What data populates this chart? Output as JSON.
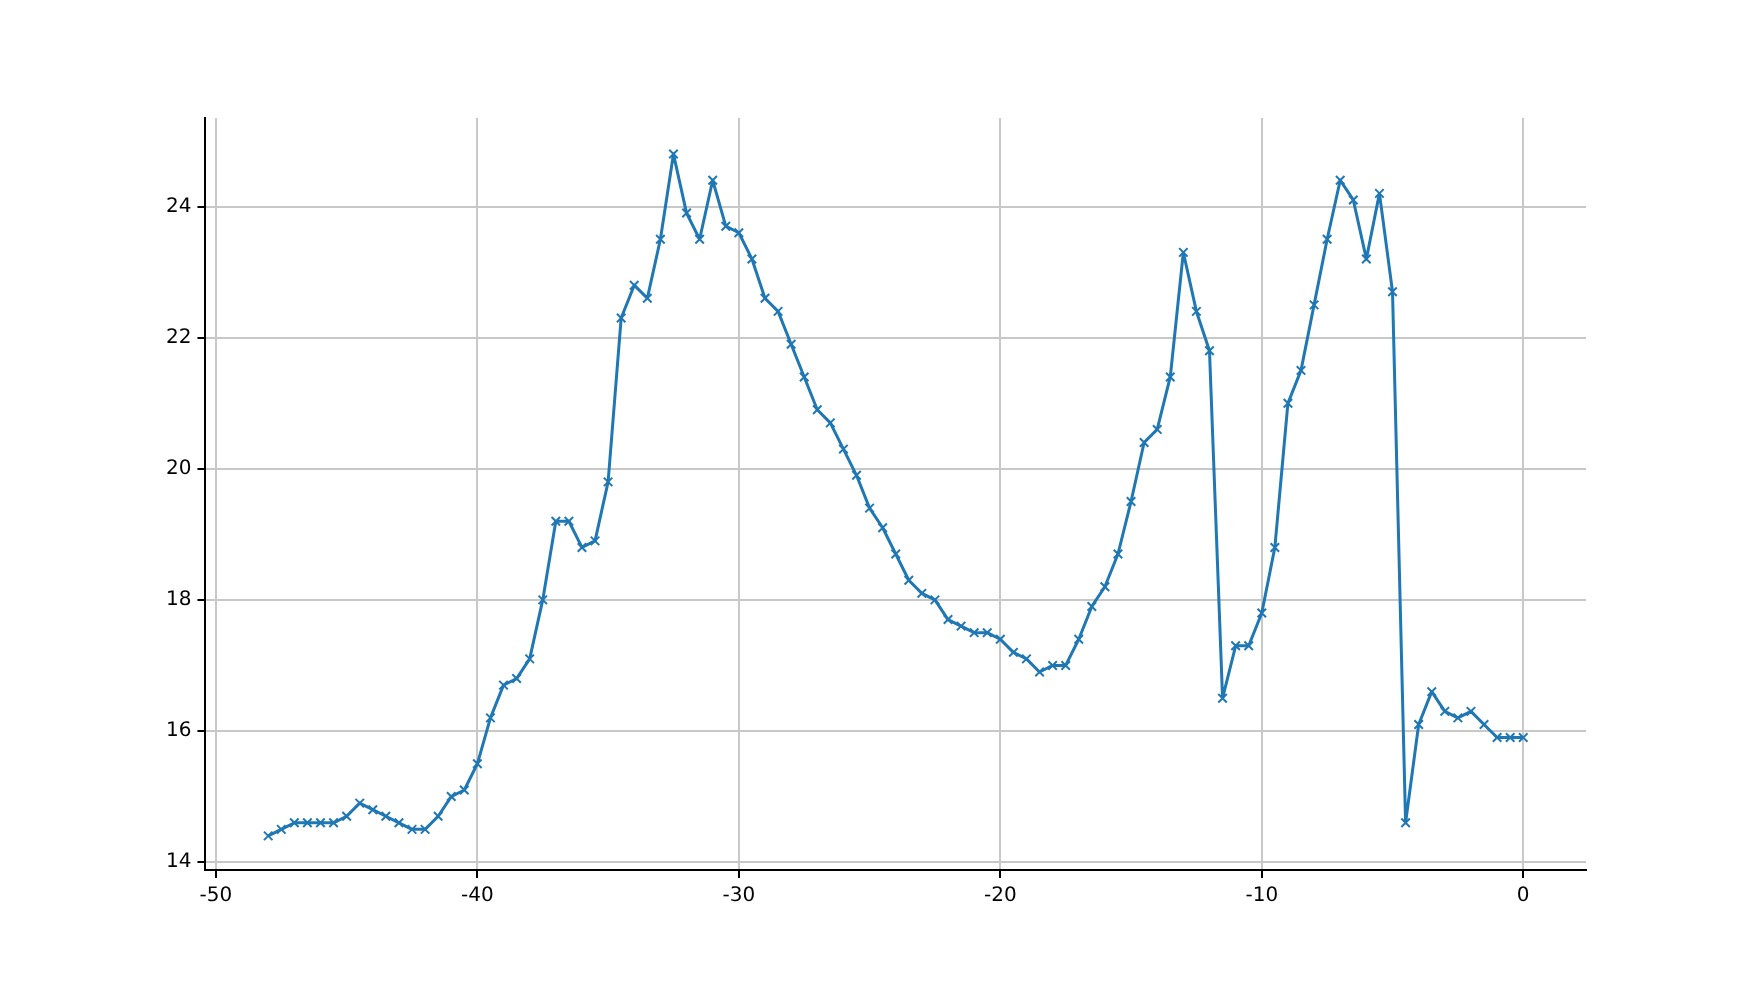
{
  "chart_data": {
    "type": "line",
    "marker": "cross",
    "grid": true,
    "xlim": [
      -50.4,
      2.4
    ],
    "ylim": [
      13.88,
      25.35
    ],
    "xticks": [
      -50,
      -40,
      -30,
      -20,
      -10,
      0
    ],
    "yticks": [
      14,
      16,
      18,
      20,
      22,
      24
    ],
    "series": [
      {
        "color": "#1f77b4",
        "x": [
          -48,
          -47.5,
          -47,
          -46.5,
          -46,
          -45.5,
          -45,
          -44.5,
          -44,
          -43.5,
          -43,
          -42.5,
          -42,
          -41.5,
          -41,
          -40.5,
          -40,
          -39.5,
          -39,
          -38.5,
          -38,
          -37.5,
          -37,
          -36.5,
          -36,
          -35.5,
          -35,
          -34.5,
          -34,
          -33.5,
          -33,
          -32.5,
          -32,
          -31.5,
          -31,
          -30.5,
          -30,
          -29.5,
          -29,
          -28.5,
          -28,
          -27.5,
          -27,
          -26.5,
          -26,
          -25.5,
          -25,
          -24.5,
          -24,
          -23.5,
          -23,
          -22.5,
          -22,
          -21.5,
          -21,
          -20.5,
          -20,
          -19.5,
          -19,
          -18.5,
          -18,
          -17.5,
          -17,
          -16.5,
          -16,
          -15.5,
          -15,
          -14.5,
          -14,
          -13.5,
          -13,
          -12.5,
          -12,
          -11.5,
          -11,
          -10.5,
          -10,
          -9.5,
          -9,
          -8.5,
          -8,
          -7.5,
          -7,
          -6.5,
          -6,
          -5.5,
          -5,
          -4.5,
          -4,
          -3.5,
          -3,
          -2.5,
          -2,
          -1.5,
          -1,
          -0.5,
          0
        ],
        "values": [
          14.4,
          14.5,
          14.6,
          14.6,
          14.6,
          14.6,
          14.7,
          14.9,
          14.8,
          14.7,
          14.6,
          14.5,
          14.5,
          14.7,
          15.0,
          15.1,
          15.5,
          16.2,
          16.7,
          16.8,
          17.1,
          18.0,
          19.2,
          19.2,
          18.8,
          18.9,
          19.8,
          22.3,
          22.8,
          22.6,
          23.5,
          24.8,
          23.9,
          23.5,
          24.4,
          23.7,
          23.6,
          23.2,
          22.6,
          22.4,
          21.9,
          21.4,
          20.9,
          20.7,
          20.3,
          19.9,
          19.4,
          19.1,
          18.7,
          18.3,
          18.1,
          18.0,
          17.7,
          17.6,
          17.5,
          17.5,
          17.4,
          17.2,
          17.1,
          16.9,
          17.0,
          17.0,
          17.4,
          17.9,
          18.2,
          18.7,
          19.5,
          20.4,
          20.6,
          21.4,
          23.3,
          22.4,
          21.8,
          16.5,
          17.3,
          17.3,
          17.8,
          18.8,
          21.0,
          21.5,
          22.5,
          23.5,
          24.4,
          24.1,
          23.2,
          24.2,
          22.7,
          14.6,
          16.1,
          16.6,
          16.3,
          16.2,
          16.3,
          16.1,
          15.9,
          15.9,
          15.9
        ]
      }
    ]
  }
}
